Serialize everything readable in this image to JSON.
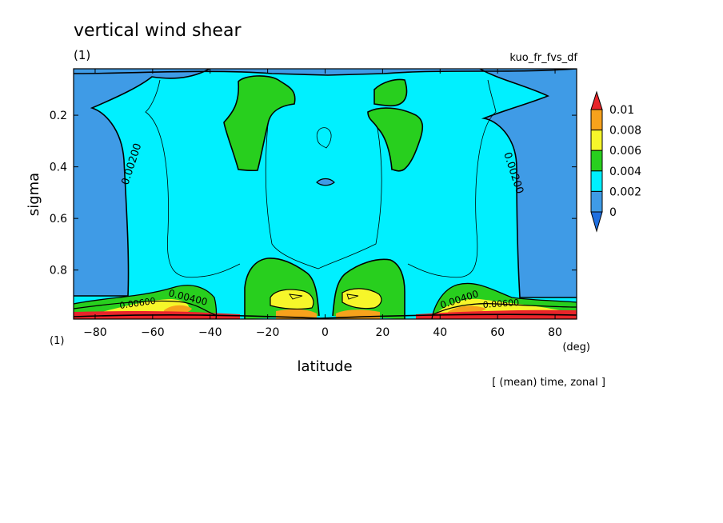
{
  "title": "vertical wind shear",
  "panel_label": "(1)",
  "axis_corner_label": "(1)",
  "dataset_label": "kuo_fr_fvs_df",
  "xlabel": "latitude",
  "ylabel": "sigma",
  "x_unit": "(deg)",
  "footnote": "[ (mean) time, zonal ]",
  "colors": {
    "c0": "#3f9be6",
    "c1": "#00f0ff",
    "c2": "#28cf1e",
    "c3": "#f6f62a",
    "c4": "#f7a21c",
    "c5": "#e8252a",
    "below0": "#1f6fe0"
  },
  "chart_data": {
    "type": "heatmap",
    "title": "vertical wind shear",
    "xlabel": "latitude",
    "ylabel": "sigma",
    "xlim": [
      -87.5,
      87.5
    ],
    "ylim": [
      0.02,
      0.99
    ],
    "y_inverted": true,
    "x_ticks": [
      -80,
      -60,
      -40,
      -20,
      0,
      20,
      40,
      60,
      80
    ],
    "y_ticks": [
      0.2,
      0.4,
      0.6,
      0.8
    ],
    "colorbar": {
      "levels": [
        "0.01",
        "0.008",
        "0.006",
        "0.004",
        "0.002",
        "0"
      ],
      "extend": "both"
    },
    "contour_labels": [
      "0.00200",
      "0.00200",
      "0.00400",
      "0.00400",
      "0.00600",
      "0.00600"
    ]
  }
}
